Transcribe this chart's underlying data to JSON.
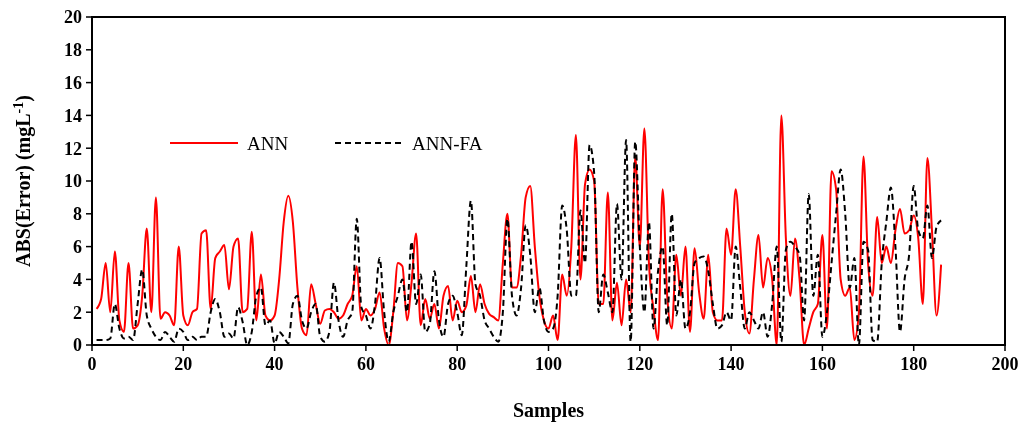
{
  "chart_data": {
    "type": "line",
    "xlabel": "Samples",
    "ylabel": "ABS(Error) (mgL$^{-1}$)",
    "x": [
      1,
      2,
      3,
      4,
      5,
      6,
      7,
      8,
      9,
      10,
      11,
      12,
      13,
      14,
      15,
      16,
      17,
      18,
      19,
      20,
      21,
      22,
      23,
      24,
      25,
      26,
      27,
      28,
      29,
      30,
      31,
      32,
      33,
      34,
      35,
      36,
      37,
      38,
      39,
      40,
      41,
      42,
      43,
      44,
      45,
      46,
      47,
      48,
      49,
      50,
      51,
      52,
      53,
      54,
      55,
      56,
      57,
      58,
      59,
      60,
      61,
      62,
      63,
      64,
      65,
      66,
      67,
      68,
      69,
      70,
      71,
      72,
      73,
      74,
      75,
      76,
      77,
      78,
      79,
      80,
      81,
      82,
      83,
      84,
      85,
      86,
      87,
      88,
      89,
      90,
      91,
      92,
      93,
      94,
      95,
      96,
      97,
      98,
      99,
      100,
      101,
      102,
      103,
      104,
      105,
      106,
      107,
      108,
      109,
      110,
      111,
      112,
      113,
      114,
      115,
      116,
      117,
      118,
      119,
      120,
      121,
      122,
      123,
      124,
      125,
      126,
      127,
      128,
      129,
      130,
      131,
      132,
      133,
      134,
      135,
      136,
      137,
      138,
      139,
      140,
      141,
      142,
      143,
      144,
      145,
      146,
      147,
      148,
      149,
      150,
      151,
      152,
      153,
      154,
      155,
      156,
      157,
      158,
      159,
      160,
      161,
      162,
      163,
      164,
      165,
      166,
      167,
      168,
      169,
      170,
      171,
      172,
      173,
      174,
      175,
      176,
      177,
      178,
      179,
      180,
      181,
      182,
      183,
      184,
      185,
      186
    ],
    "series": [
      {
        "name": "ANN",
        "color": "#ff0000",
        "line_style": "solid",
        "values": [
          2.2,
          2.8,
          5.0,
          2.0,
          5.7,
          1.5,
          0.8,
          5.0,
          1.0,
          1.2,
          3.0,
          7.1,
          2.0,
          9.0,
          1.6,
          2.0,
          1.8,
          1.2,
          6.0,
          1.8,
          1.2,
          2.0,
          2.2,
          6.8,
          7.0,
          2.2,
          5.3,
          5.7,
          6.1,
          3.4,
          6.0,
          6.5,
          2.0,
          2.2,
          6.9,
          1.5,
          4.3,
          1.8,
          1.5,
          1.8,
          4.0,
          7.5,
          9.1,
          7.5,
          3.5,
          1.0,
          0.6,
          3.7,
          2.5,
          1.3,
          2.1,
          2.2,
          2.0,
          1.6,
          1.8,
          2.5,
          3.0,
          4.8,
          1.5,
          2.2,
          1.8,
          2.2,
          3.2,
          1.0,
          0.0,
          2.0,
          5.0,
          4.8,
          1.5,
          3.8,
          6.8,
          1.2,
          2.8,
          1.6,
          2.5,
          1.0,
          3.0,
          3.6,
          1.5,
          2.7,
          2.0,
          2.4,
          4.2,
          2.0,
          3.7,
          2.5,
          1.9,
          1.7,
          1.5,
          5.0,
          8.0,
          3.5,
          3.5,
          5.5,
          9.0,
          9.7,
          6.0,
          3.0,
          1.5,
          1.0,
          1.8,
          0.3,
          4.3,
          3.0,
          6.0,
          12.8,
          4.0,
          9.8,
          10.7,
          10.0,
          2.5,
          2.5,
          9.3,
          1.5,
          3.8,
          1.2,
          4.0,
          2.0,
          11.5,
          6.0,
          13.2,
          5.0,
          2.2,
          0.3,
          9.5,
          3.0,
          1.0,
          5.5,
          3.0,
          6.0,
          0.8,
          5.9,
          3.2,
          1.6,
          5.5,
          2.0,
          1.5,
          1.5,
          7.1,
          5.5,
          9.5,
          6.0,
          2.0,
          0.7,
          4.0,
          6.7,
          3.5,
          5.3,
          4.0,
          0.0,
          14.0,
          6.5,
          3.0,
          6.5,
          4.0,
          0.0,
          1.0,
          2.0,
          2.5,
          6.7,
          1.0,
          10.6,
          9.5,
          4.0,
          3.0,
          3.5,
          0.3,
          2.0,
          11.5,
          5.0,
          3.0,
          7.8,
          5.0,
          6.0,
          5.0,
          7.0,
          8.3,
          6.8,
          7.0,
          7.9,
          6.5,
          2.5,
          11.4,
          7.0,
          1.8,
          4.9
        ]
      },
      {
        "name": "ANN-FA",
        "color": "#000000",
        "line_style": "dashed",
        "values": [
          0.3,
          0.3,
          0.3,
          0.4,
          2.5,
          1.0,
          0.4,
          0.5,
          0.3,
          2.5,
          4.6,
          1.8,
          1.0,
          0.5,
          0.3,
          0.8,
          0.5,
          0.2,
          1.0,
          0.8,
          0.3,
          0.5,
          0.3,
          0.5,
          0.5,
          2.0,
          2.8,
          2.0,
          0.5,
          0.7,
          0.4,
          2.3,
          1.4,
          0.0,
          0.8,
          3.0,
          3.5,
          1.2,
          1.5,
          0.1,
          0.8,
          0.5,
          0.1,
          2.5,
          3.0,
          1.5,
          1.0,
          2.0,
          2.5,
          0.5,
          0.2,
          0.8,
          3.8,
          1.5,
          0.5,
          1.5,
          2.0,
          7.7,
          2.3,
          1.8,
          1.0,
          2.5,
          5.3,
          2.0,
          0.2,
          2.0,
          3.0,
          4.0,
          2.0,
          6.3,
          2.5,
          4.3,
          0.8,
          1.3,
          4.5,
          1.5,
          0.5,
          2.5,
          3.0,
          2.0,
          0.6,
          4.8,
          8.8,
          3.7,
          3.0,
          1.5,
          1.0,
          0.5,
          0.2,
          2.0,
          7.7,
          3.0,
          1.8,
          3.5,
          7.3,
          5.5,
          2.0,
          3.5,
          1.5,
          0.8,
          1.0,
          3.0,
          8.5,
          7.0,
          3.0,
          3.0,
          8.2,
          5.0,
          12.2,
          10.5,
          2.0,
          4.3,
          3.2,
          2.0,
          8.6,
          4.0,
          12.5,
          0.2,
          12.4,
          6.0,
          2.0,
          7.5,
          1.0,
          4.5,
          6.0,
          1.2,
          8.0,
          1.8,
          4.0,
          1.0,
          2.0,
          5.0,
          5.3,
          5.4,
          4.5,
          2.5,
          1.0,
          1.2,
          2.0,
          1.5,
          6.0,
          3.5,
          1.0,
          2.0,
          1.5,
          1.0,
          2.0,
          0.5,
          2.5,
          6.0,
          0.2,
          5.8,
          6.3,
          6.0,
          5.5,
          1.5,
          9.2,
          3.0,
          5.5,
          0.5,
          2.0,
          5.0,
          8.0,
          10.7,
          8.0,
          3.5,
          5.3,
          0.0,
          6.3,
          5.8,
          0.3,
          0.2,
          5.0,
          7.5,
          9.6,
          6.0,
          0.8,
          4.0,
          5.5,
          9.7,
          7.0,
          6.5,
          8.5,
          5.3,
          7.2,
          7.6
        ]
      }
    ],
    "xlim": [
      0,
      200
    ],
    "xticks": [
      0,
      20,
      40,
      60,
      80,
      100,
      120,
      140,
      160,
      180,
      200
    ],
    "ylim": [
      0,
      20
    ],
    "yticks": [
      0,
      2,
      4,
      6,
      8,
      10,
      12,
      14,
      16,
      18,
      20
    ],
    "grid": false,
    "legend": "top left"
  }
}
